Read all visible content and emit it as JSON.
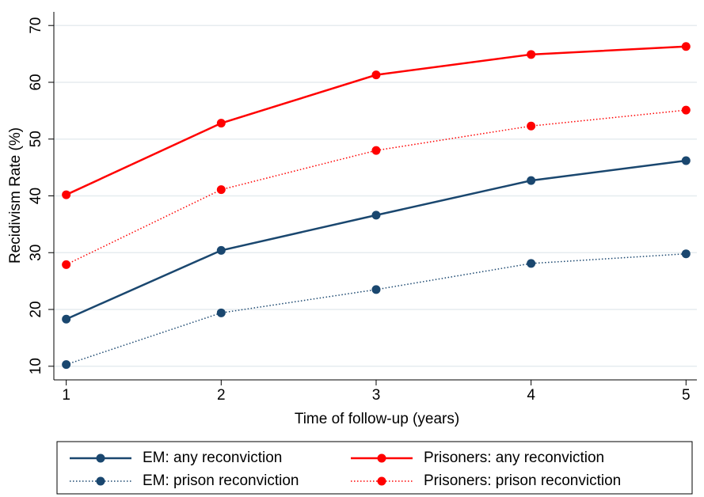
{
  "chart_data": {
    "type": "line",
    "x_label": "Time of follow-up (years)",
    "y_label": "Recidivism Rate (%)",
    "x": [
      1,
      2,
      3,
      4,
      5
    ],
    "xlim": [
      0.92,
      5.07
    ],
    "xticks": [
      1,
      2,
      3,
      4,
      5
    ],
    "ylim": [
      7.6,
      72.4
    ],
    "yticks": [
      10,
      20,
      30,
      40,
      50,
      60,
      70
    ],
    "grid": true,
    "series": [
      {
        "name": "EM: any reconviction",
        "color": "#1a476f",
        "style": "solid",
        "values": [
          18.3,
          30.4,
          36.6,
          42.7,
          46.2
        ]
      },
      {
        "name": "Prisoners: any reconviction",
        "color": "#ff0000",
        "style": "solid",
        "values": [
          40.2,
          52.8,
          61.3,
          64.9,
          66.3
        ]
      },
      {
        "name": "EM: prison reconviction",
        "color": "#1a476f",
        "style": "dotted",
        "values": [
          10.3,
          19.4,
          23.5,
          28.1,
          29.8
        ]
      },
      {
        "name": "Prisoners: prison reconviction",
        "color": "#ff0000",
        "style": "dotted",
        "values": [
          27.9,
          41.1,
          48.0,
          52.3,
          55.1
        ]
      }
    ]
  }
}
